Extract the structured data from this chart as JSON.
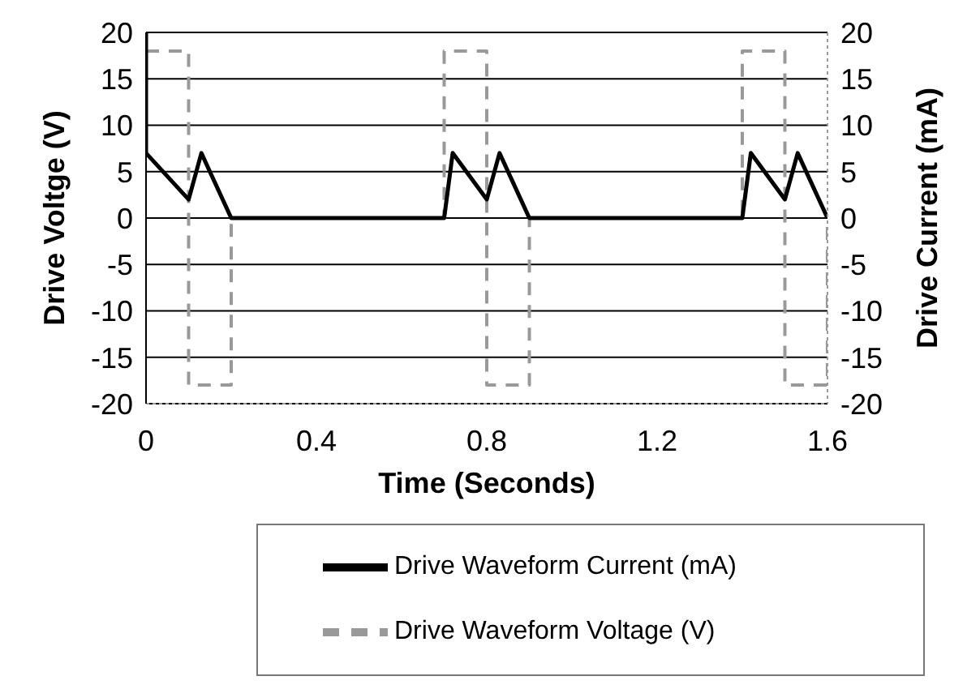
{
  "chart_data": {
    "type": "line",
    "xlabel": "Time (Seconds)",
    "ylabel": "Drive Voltge (V)",
    "y2label": "Drive Current (mA)",
    "xlim": [
      0,
      1.6
    ],
    "xticks": [
      0,
      0.4,
      0.8,
      1.2,
      1.6
    ],
    "ylim": [
      -20,
      20
    ],
    "yticks": [
      -20,
      -15,
      -10,
      -5,
      0,
      5,
      10,
      15,
      20
    ],
    "y2lim": [
      -20,
      20
    ],
    "y2ticks": [
      -20,
      -15,
      -10,
      -5,
      0,
      5,
      10,
      15,
      20
    ],
    "grid": "y",
    "legend": "bottom",
    "marker": "none",
    "series": [
      {
        "name": "Drive Waveform Voltage (V)",
        "color": "#999999",
        "line_style": "dashed",
        "x": [
          0,
          0.1,
          0.1,
          0.2,
          0.2,
          0.7,
          0.7,
          0.8,
          0.8,
          0.9,
          0.9,
          1.4,
          1.4,
          1.5,
          1.5,
          1.6,
          1.6
        ],
        "values": [
          18,
          18,
          -18,
          -18,
          0,
          0,
          18,
          18,
          -18,
          -18,
          0,
          0,
          18,
          18,
          -18,
          -18,
          0
        ]
      },
      {
        "name": "Drive Waveform Current (mA)",
        "color": "#000000",
        "line_style": "solid",
        "axis": "y2",
        "x": [
          0,
          0,
          0.1,
          0.13,
          0.2,
          0.7,
          0.72,
          0.8,
          0.83,
          0.9,
          1.4,
          1.42,
          1.5,
          1.53,
          1.6
        ],
        "values": [
          20,
          7,
          2,
          7,
          0,
          0,
          7,
          2,
          7,
          0,
          0,
          7,
          2,
          7,
          0
        ]
      }
    ]
  }
}
